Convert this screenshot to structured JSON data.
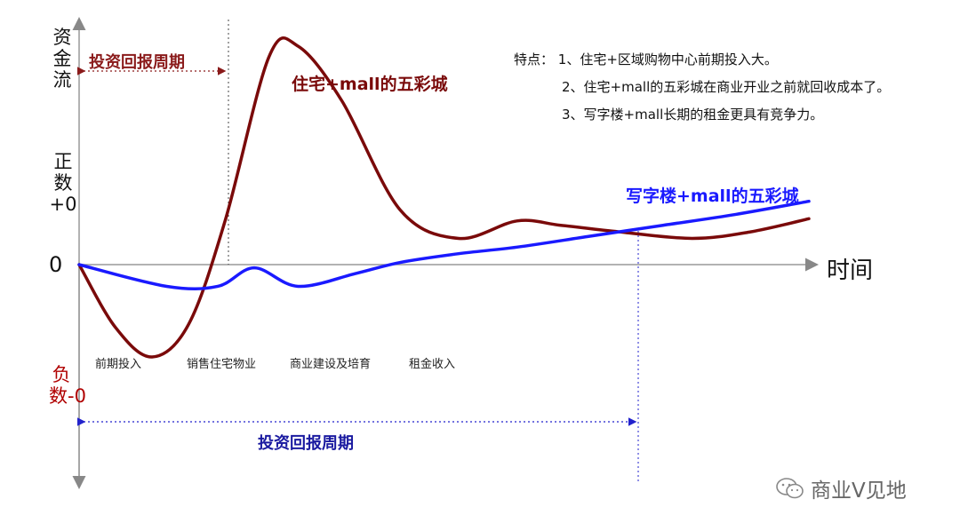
{
  "chart_data": {
    "type": "line",
    "ylabel": "资金流",
    "xlabel": "时间",
    "origin_label": "0",
    "y_positive_label": "正数+0",
    "y_negative_label": "负数-0",
    "stages": [
      "前期投入",
      "销售住宅物业",
      "商业建设及培育",
      "租金收入"
    ],
    "series": [
      {
        "name": "住宅+mall的五彩城",
        "color": "#7a0a0a",
        "points": [
          [
            0,
            0
          ],
          [
            0.25,
            -0.58
          ],
          [
            0.5,
            -0.85
          ],
          [
            0.75,
            -0.55
          ],
          [
            1.0,
            0.2
          ],
          [
            1.3,
            0.95
          ],
          [
            1.5,
            1.0
          ],
          [
            1.8,
            0.75
          ],
          [
            2.2,
            0.25
          ],
          [
            2.6,
            0.12
          ],
          [
            3.0,
            0.2
          ],
          [
            3.3,
            0.18
          ],
          [
            3.7,
            0.15
          ],
          [
            4.2,
            0.12
          ],
          [
            4.6,
            0.15
          ],
          [
            5.0,
            0.21
          ]
        ]
      },
      {
        "name": "写字楼+mall的五彩城",
        "color": "#1a1aff",
        "points": [
          [
            0,
            0
          ],
          [
            0.6,
            -0.2
          ],
          [
            0.95,
            -0.2
          ],
          [
            1.2,
            -0.03
          ],
          [
            1.5,
            -0.2
          ],
          [
            1.9,
            -0.08
          ],
          [
            2.2,
            0.01
          ],
          [
            2.6,
            0.05
          ],
          [
            3.0,
            0.08
          ],
          [
            3.5,
            0.13
          ],
          [
            4.0,
            0.18
          ],
          [
            4.5,
            0.23
          ],
          [
            5.0,
            0.29
          ]
        ]
      }
    ],
    "annotations": {
      "top_period": "投资回报周期",
      "bottom_period": "投资回报周期",
      "notes_title": "特点：",
      "notes": [
        "1、住宅+区域购物中心前期投入大。",
        "2、住宅+mall的五彩城在商业开业之前就回收成本了。",
        "3、写字楼+mall长期的租金更具有竞争力。"
      ]
    },
    "grid": false,
    "legend": "inline"
  },
  "watermark": "商业V见地"
}
